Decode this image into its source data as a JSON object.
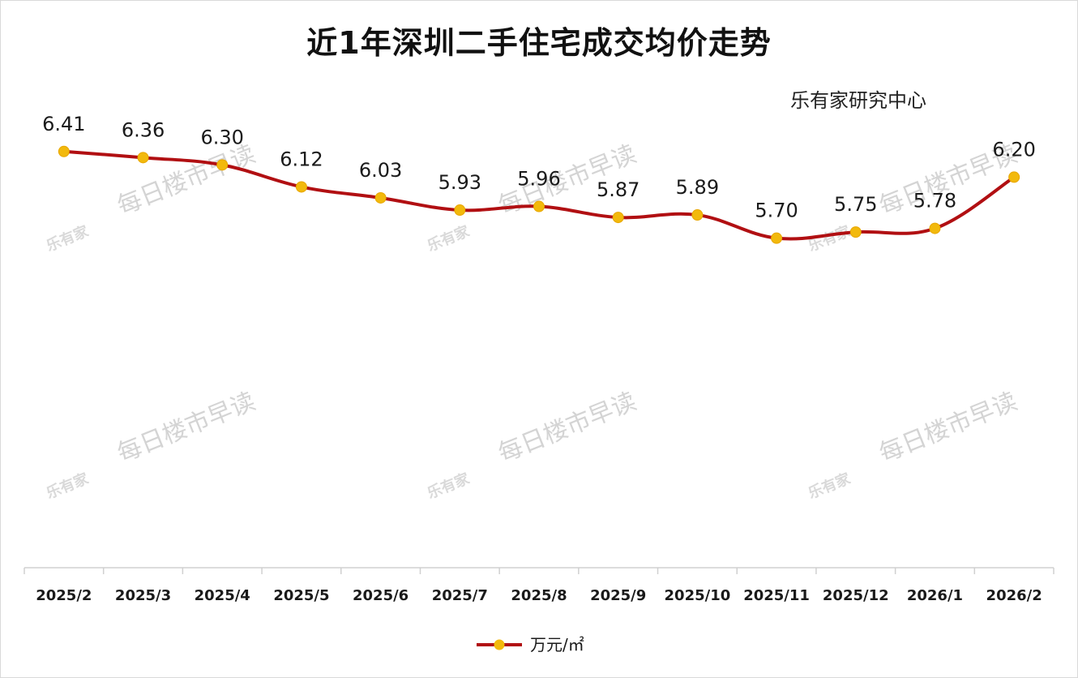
{
  "watermark": {
    "text": "每日楼市早读",
    "logo": "乐有家"
  },
  "chart_data": {
    "type": "line",
    "title": "近1年深圳二手住宅成交均价走势",
    "source": "乐有家研究中心",
    "categories": [
      "2025/2",
      "2025/3",
      "2025/4",
      "2025/5",
      "2025/6",
      "2025/7",
      "2025/8",
      "2025/9",
      "2025/10",
      "2025/11",
      "2025/12",
      "2026/1",
      "2026/2"
    ],
    "series": [
      {
        "name": "万元/㎡",
        "values": [
          6.41,
          6.36,
          6.3,
          6.12,
          6.03,
          5.93,
          5.96,
          5.87,
          5.89,
          5.7,
          5.75,
          5.78,
          6.2
        ],
        "labels": [
          "6.41",
          "6.36",
          "6.30",
          "6.12",
          "6.03",
          "5.93",
          "5.96",
          "5.87",
          "5.89",
          "5.70",
          "5.75",
          "5.78",
          "6.20"
        ]
      }
    ],
    "legend_position": "bottom-center",
    "grid": false,
    "xlabel": "",
    "ylabel": "",
    "ylim": [
      3.0,
      7.0
    ],
    "colors": {
      "line": "#b10f12",
      "marker": "#f2b90c"
    }
  }
}
